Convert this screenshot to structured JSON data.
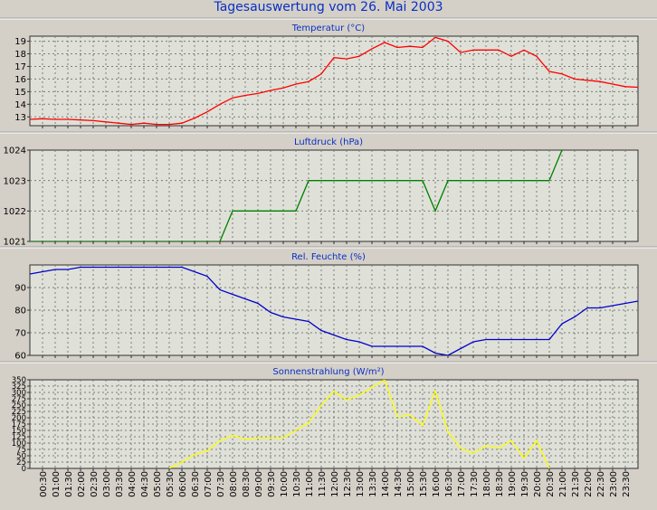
{
  "page_title": "Tagesauswertung vom 26. Mai 2003",
  "x_ticks": [
    "00:30",
    "01:00",
    "01:30",
    "02:00",
    "02:30",
    "03:00",
    "03:30",
    "04:00",
    "04:30",
    "05:00",
    "05:30",
    "06:00",
    "06:30",
    "07:00",
    "07:30",
    "08:00",
    "08:30",
    "09:00",
    "09:30",
    "10:00",
    "10:30",
    "11:00",
    "11:30",
    "12:00",
    "12:30",
    "13:00",
    "13:30",
    "14:00",
    "14:30",
    "15:00",
    "15:30",
    "16:00",
    "16:30",
    "17:00",
    "17:30",
    "18:00",
    "18:30",
    "19:00",
    "19:30",
    "20:00",
    "20:30",
    "21:00",
    "21:30",
    "22:00",
    "22:30",
    "23:00",
    "23:30"
  ],
  "chart_data": [
    {
      "type": "line",
      "title": "Temperatur (°C)",
      "ylim": [
        12.3,
        19.4
      ],
      "yticks": [
        13,
        14,
        15,
        16,
        17,
        18,
        19
      ],
      "grid": true,
      "color": "#ff0000",
      "x": [
        "00:00",
        "00:30",
        "01:00",
        "01:30",
        "02:00",
        "02:30",
        "03:00",
        "03:30",
        "04:00",
        "04:30",
        "05:00",
        "05:30",
        "06:00",
        "06:30",
        "07:00",
        "07:30",
        "08:00",
        "08:30",
        "09:00",
        "09:30",
        "10:00",
        "10:30",
        "11:00",
        "11:30",
        "12:00",
        "12:30",
        "13:00",
        "13:30",
        "14:00",
        "14:30",
        "15:00",
        "15:30",
        "16:00",
        "16:30",
        "17:00",
        "17:30",
        "18:00",
        "18:30",
        "19:00",
        "19:30",
        "20:00",
        "20:30",
        "21:00",
        "21:30",
        "22:00",
        "22:30",
        "23:00",
        "23:30",
        "00:00"
      ],
      "values": [
        12.8,
        12.85,
        12.8,
        12.8,
        12.75,
        12.7,
        12.6,
        12.5,
        12.4,
        12.5,
        12.4,
        12.4,
        12.5,
        12.9,
        13.4,
        14.0,
        14.5,
        14.7,
        14.85,
        15.1,
        15.3,
        15.6,
        15.8,
        16.4,
        17.7,
        17.6,
        17.8,
        18.4,
        18.9,
        18.5,
        18.6,
        18.5,
        19.3,
        19.0,
        18.1,
        18.3,
        18.3,
        18.3,
        17.8,
        18.3,
        17.8,
        16.6,
        16.4,
        16.0,
        15.9,
        15.8,
        15.6,
        15.4,
        15.35
      ]
    },
    {
      "type": "line",
      "title": "Luftdruck (hPa)",
      "ylim": [
        1021,
        1024
      ],
      "yticks": [
        1021,
        1022,
        1023,
        1024
      ],
      "grid": true,
      "color": "#008000",
      "x": [
        "00:00",
        "07:30",
        "08:00",
        "08:30",
        "09:00",
        "09:30",
        "10:00",
        "10:30",
        "11:00",
        "11:30",
        "12:00",
        "12:30",
        "13:00",
        "13:30",
        "14:00",
        "14:30",
        "15:00",
        "15:30",
        "16:00",
        "16:30",
        "17:00",
        "17:30",
        "18:00",
        "18:30",
        "19:00",
        "19:30",
        "20:00",
        "20:30",
        "21:00"
      ],
      "values": [
        1021,
        1021,
        1022,
        1022,
        1022,
        1022,
        1022,
        1022,
        1023,
        1023,
        1023,
        1023,
        1023,
        1023,
        1023,
        1023,
        1023,
        1023,
        1022,
        1023,
        1023,
        1023,
        1023,
        1023,
        1023,
        1023,
        1023,
        1023,
        1024
      ]
    },
    {
      "type": "line",
      "title": "Rel. Feuchte (%)",
      "ylim": [
        60,
        100
      ],
      "yticks": [
        60,
        70,
        80,
        90
      ],
      "grid": true,
      "color": "#0000cc",
      "x": [
        "00:00",
        "00:30",
        "01:00",
        "01:30",
        "02:00",
        "02:30",
        "03:00",
        "03:30",
        "04:00",
        "04:30",
        "05:00",
        "05:30",
        "06:00",
        "06:30",
        "07:00",
        "07:30",
        "08:00",
        "08:30",
        "09:00",
        "09:30",
        "10:00",
        "10:30",
        "11:00",
        "11:30",
        "12:00",
        "12:30",
        "13:00",
        "13:30",
        "14:00",
        "14:30",
        "15:00",
        "15:30",
        "16:00",
        "16:30",
        "17:00",
        "17:30",
        "18:00",
        "18:30",
        "19:00",
        "19:30",
        "20:00",
        "20:30",
        "21:00",
        "21:30",
        "22:00",
        "22:30",
        "23:00",
        "23:30",
        "00:00"
      ],
      "values": [
        96,
        97,
        98,
        98,
        99,
        99,
        99,
        99,
        99,
        99,
        99,
        99,
        99,
        97,
        95,
        89,
        87,
        85,
        83,
        79,
        77,
        76,
        75,
        71,
        69,
        67,
        66,
        64,
        64,
        64,
        64,
        64,
        61,
        60,
        63,
        66,
        67,
        67,
        67,
        67,
        67,
        67,
        74,
        77,
        81,
        81,
        82,
        83,
        84
      ]
    },
    {
      "type": "line",
      "title": "Sonnenstrahlung (W/m²)",
      "ylim": [
        0,
        350
      ],
      "yticks": [
        0,
        25,
        50,
        75,
        100,
        125,
        150,
        175,
        200,
        225,
        250,
        275,
        300,
        325,
        350
      ],
      "grid": true,
      "color": "#ffff00",
      "x": [
        "05:30",
        "06:00",
        "06:30",
        "07:00",
        "07:30",
        "08:00",
        "08:30",
        "09:00",
        "09:30",
        "10:00",
        "10:30",
        "11:00",
        "11:30",
        "12:00",
        "12:30",
        "13:00",
        "13:30",
        "14:00",
        "14:30",
        "15:00",
        "15:30",
        "16:00",
        "16:30",
        "17:00",
        "17:30",
        "18:00",
        "18:30",
        "19:00",
        "19:30",
        "20:00",
        "20:30"
      ],
      "values": [
        0,
        25,
        55,
        70,
        110,
        130,
        115,
        120,
        120,
        120,
        150,
        180,
        250,
        305,
        270,
        290,
        320,
        350,
        205,
        210,
        170,
        305,
        145,
        80,
        60,
        90,
        80,
        110,
        40,
        110,
        0
      ]
    }
  ]
}
